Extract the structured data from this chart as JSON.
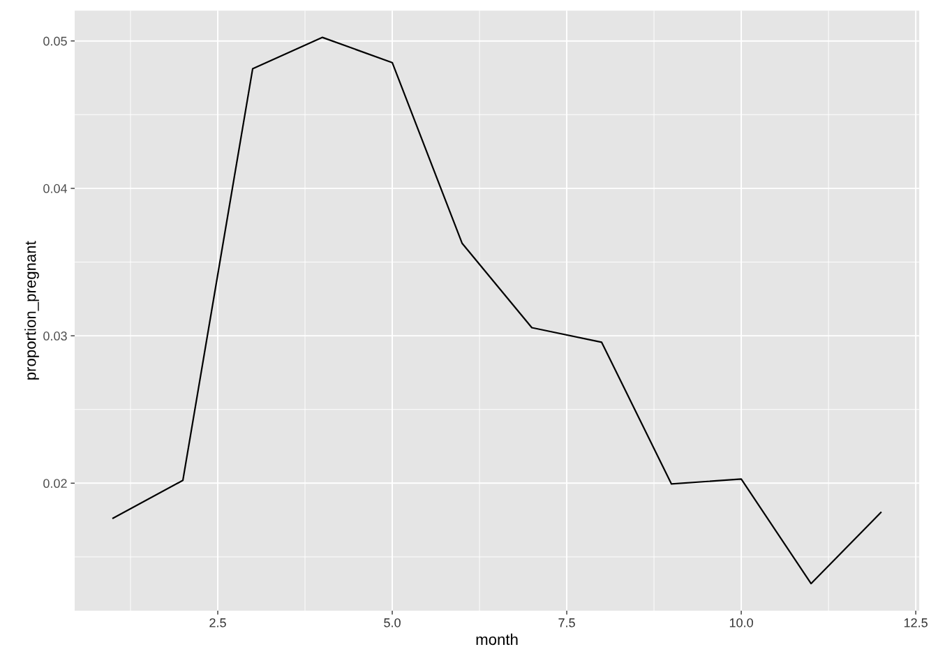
{
  "chart_data": {
    "type": "line",
    "xlabel": "month",
    "ylabel": "proportion_pregnant",
    "x": [
      1,
      2,
      3,
      4,
      5,
      6,
      7,
      8,
      9,
      10,
      11,
      12
    ],
    "series": [
      {
        "color": "#000000",
        "values": [
          0.01763,
          0.02019,
          0.04811,
          0.05024,
          0.04853,
          0.03628,
          0.03055,
          0.02956,
          0.01995,
          0.02028,
          0.01319,
          0.01801
        ]
      }
    ],
    "xlim": [
      0.45,
      12.55
    ],
    "xticks": [
      {
        "value": 2.5,
        "label": "2.5"
      },
      {
        "value": 5,
        "label": "5.0"
      },
      {
        "value": 7.5,
        "label": "7.5"
      },
      {
        "value": 10,
        "label": "10.0"
      },
      {
        "value": 12.5,
        "label": "12.5"
      }
    ],
    "ylim": [
      0.01135,
      0.05205
    ],
    "yticks": [
      0.02,
      0.03,
      0.04,
      0.05
    ],
    "grid": true,
    "line_style": "solid"
  }
}
